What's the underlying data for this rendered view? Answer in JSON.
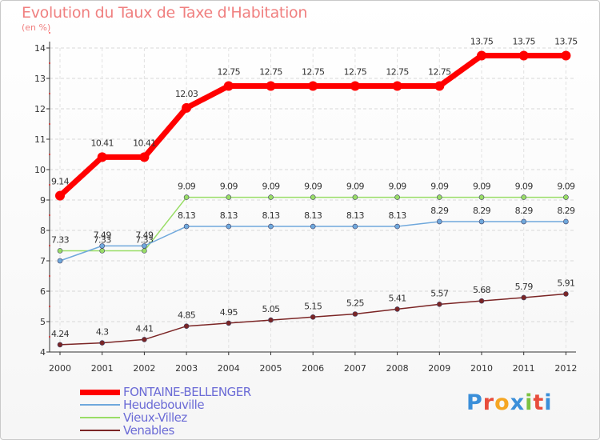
{
  "title": "Evolution du Taux de Taxe d'Habitation",
  "unit_label": "(en %)",
  "chart_data": {
    "type": "line",
    "title": "Evolution du Taux de Taxe d'Habitation",
    "ylabel": "(en %)",
    "xlabel": "",
    "ylim": [
      4,
      14
    ],
    "yticks": [
      "4",
      "5",
      "6",
      "7",
      "8",
      "9",
      "10",
      "11",
      "12",
      "13",
      "14"
    ],
    "categories": [
      "2000",
      "2001",
      "2002",
      "2003",
      "2004",
      "2005",
      "2006",
      "2007",
      "2008",
      "2009",
      "2010",
      "2011",
      "2012"
    ],
    "series": [
      {
        "name": "FONTAINE-BELLENGER",
        "color": "#ff0000",
        "values": [
          9.14,
          10.41,
          10.41,
          12.03,
          12.75,
          12.75,
          12.75,
          12.75,
          12.75,
          12.75,
          13.75,
          13.75,
          13.75
        ],
        "labels": [
          "9.14",
          "10.41",
          "10.41",
          "12.03",
          "12.75",
          "12.75",
          "12.75",
          "12.75",
          "12.75",
          "12.75",
          "13.75",
          "13.75",
          "13.75"
        ]
      },
      {
        "name": "Heudebouville",
        "color": "#6fa8dc",
        "values": [
          7.0,
          7.49,
          7.49,
          8.13,
          8.13,
          8.13,
          8.13,
          8.13,
          8.13,
          8.29,
          8.29,
          8.29,
          8.29
        ],
        "labels": [
          "",
          "7.49",
          "7.49",
          "8.13",
          "8.13",
          "8.13",
          "8.13",
          "8.13",
          "8.13",
          "8.29",
          "8.29",
          "8.29",
          "8.29"
        ]
      },
      {
        "name": "Vieux-Villez",
        "color": "#99dd66",
        "values": [
          7.33,
          7.33,
          7.33,
          9.09,
          9.09,
          9.09,
          9.09,
          9.09,
          9.09,
          9.09,
          9.09,
          9.09,
          9.09
        ],
        "labels": [
          "7.33",
          "7.33",
          "7.33",
          "9.09",
          "9.09",
          "9.09",
          "9.09",
          "9.09",
          "9.09",
          "9.09",
          "9.09",
          "9.09",
          "9.09"
        ]
      },
      {
        "name": "Venables",
        "color": "#7b2525",
        "values": [
          4.24,
          4.3,
          4.41,
          4.85,
          4.95,
          5.05,
          5.15,
          5.25,
          5.41,
          5.57,
          5.68,
          5.79,
          5.91
        ],
        "labels": [
          "4.24",
          "4.3",
          "4.41",
          "4.85",
          "4.95",
          "5.05",
          "5.15",
          "5.25",
          "5.41",
          "5.57",
          "5.68",
          "5.79",
          "5.91"
        ]
      }
    ],
    "legend_position": "bottom-left"
  },
  "legend": [
    {
      "label": "FONTAINE-BELLENGER",
      "color": "#ff0000"
    },
    {
      "label": "Heudebouville",
      "color": "#6fa8dc"
    },
    {
      "label": "Vieux-Villez",
      "color": "#99dd66"
    },
    {
      "label": "Venables",
      "color": "#7b2525"
    }
  ],
  "logo": {
    "letters": [
      "P",
      "r",
      "o",
      "x",
      "i",
      "t",
      "i"
    ],
    "colors": [
      "#3b8fd9",
      "#e84d3c",
      "#f5a623",
      "#3b8fd9",
      "#7cc242",
      "#e84d3c",
      "#3b8fd9"
    ]
  }
}
